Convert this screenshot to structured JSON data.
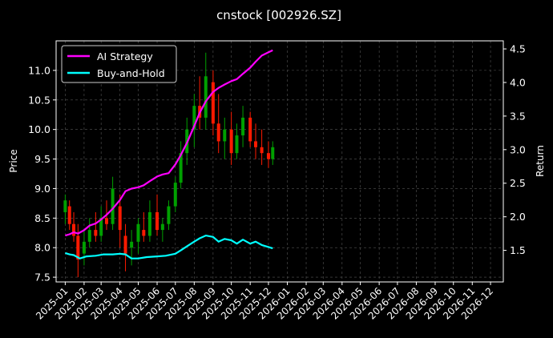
{
  "chart_data": {
    "type": "line",
    "title": "cnstock [002926.SZ]",
    "ylabel": "Price",
    "y2label": "Return",
    "ylim": [
      7.42,
      11.5
    ],
    "y2lim": [
      1.03,
      4.62
    ],
    "x_range": [
      "2024-12-17",
      "2026-12-22"
    ],
    "x_ticks": [
      "2025-01",
      "2025-02",
      "2025-03",
      "2025-04",
      "2025-05",
      "2025-06",
      "2025-07",
      "2025-08",
      "2025-09",
      "2025-10",
      "2025-11",
      "2025-12",
      "2026-01",
      "2026-02",
      "2026-03",
      "2026-04",
      "2026-05",
      "2026-06",
      "2026-07",
      "2026-08",
      "2026-09",
      "2026-10",
      "2026-11",
      "2026-12"
    ],
    "y_ticks": [
      "7.5",
      "8.0",
      "8.5",
      "9.0",
      "9.5",
      "10.0",
      "10.5",
      "11.0"
    ],
    "y2_ticks": [
      "1.5",
      "2.0",
      "2.5",
      "3.0",
      "3.5",
      "4.0",
      "4.5"
    ],
    "grid": true,
    "legend_position": "top-left",
    "colors": {
      "up": "#00a000",
      "down": "#ff1a00",
      "strategy": "#ff00ff",
      "buyhold": "#00ffff"
    },
    "series": [
      {
        "name": "AI Strategy",
        "axis": "right",
        "points": [
          [
            "2025-01-01",
            1.72
          ],
          [
            "2025-01-08",
            1.74
          ],
          [
            "2025-01-15",
            1.77
          ],
          [
            "2025-01-22",
            1.75
          ],
          [
            "2025-02-01",
            1.8
          ],
          [
            "2025-02-10",
            1.87
          ],
          [
            "2025-02-20",
            1.9
          ],
          [
            "2025-03-01",
            1.96
          ],
          [
            "2025-03-10",
            2.03
          ],
          [
            "2025-03-20",
            2.12
          ],
          [
            "2025-04-01",
            2.25
          ],
          [
            "2025-04-10",
            2.38
          ],
          [
            "2025-04-20",
            2.42
          ],
          [
            "2025-05-01",
            2.44
          ],
          [
            "2025-05-10",
            2.47
          ],
          [
            "2025-05-20",
            2.53
          ],
          [
            "2025-06-01",
            2.6
          ],
          [
            "2025-06-10",
            2.63
          ],
          [
            "2025-06-20",
            2.65
          ],
          [
            "2025-07-01",
            2.78
          ],
          [
            "2025-07-10",
            2.92
          ],
          [
            "2025-07-20",
            3.1
          ],
          [
            "2025-08-01",
            3.35
          ],
          [
            "2025-08-10",
            3.55
          ],
          [
            "2025-08-20",
            3.72
          ],
          [
            "2025-09-01",
            3.86
          ],
          [
            "2025-09-10",
            3.92
          ],
          [
            "2025-09-20",
            3.97
          ],
          [
            "2025-10-01",
            4.02
          ],
          [
            "2025-10-10",
            4.05
          ],
          [
            "2025-10-20",
            4.13
          ],
          [
            "2025-11-01",
            4.22
          ],
          [
            "2025-11-10",
            4.31
          ],
          [
            "2025-11-20",
            4.4
          ],
          [
            "2025-12-01",
            4.45
          ],
          [
            "2025-12-08",
            4.48
          ]
        ]
      },
      {
        "name": "Buy-and-Hold",
        "axis": "right",
        "points": [
          [
            "2025-01-01",
            1.46
          ],
          [
            "2025-01-08",
            1.44
          ],
          [
            "2025-01-15",
            1.43
          ],
          [
            "2025-01-25",
            1.38
          ],
          [
            "2025-02-05",
            1.41
          ],
          [
            "2025-02-20",
            1.42
          ],
          [
            "2025-03-05",
            1.44
          ],
          [
            "2025-03-20",
            1.44
          ],
          [
            "2025-04-01",
            1.45
          ],
          [
            "2025-04-10",
            1.44
          ],
          [
            "2025-04-20",
            1.38
          ],
          [
            "2025-05-01",
            1.38
          ],
          [
            "2025-05-15",
            1.4
          ],
          [
            "2025-06-01",
            1.41
          ],
          [
            "2025-06-15",
            1.42
          ],
          [
            "2025-07-01",
            1.45
          ],
          [
            "2025-07-10",
            1.5
          ],
          [
            "2025-07-20",
            1.56
          ],
          [
            "2025-08-01",
            1.63
          ],
          [
            "2025-08-10",
            1.68
          ],
          [
            "2025-08-20",
            1.72
          ],
          [
            "2025-09-01",
            1.7
          ],
          [
            "2025-09-10",
            1.63
          ],
          [
            "2025-09-20",
            1.67
          ],
          [
            "2025-10-01",
            1.65
          ],
          [
            "2025-10-10",
            1.6
          ],
          [
            "2025-10-20",
            1.66
          ],
          [
            "2025-11-01",
            1.6
          ],
          [
            "2025-11-10",
            1.63
          ],
          [
            "2025-11-20",
            1.58
          ],
          [
            "2025-12-01",
            1.55
          ],
          [
            "2025-12-08",
            1.53
          ]
        ]
      }
    ],
    "candles": [
      [
        "2025-01-01",
        8.6,
        8.9,
        8.4,
        8.8
      ],
      [
        "2025-01-08",
        8.7,
        8.8,
        8.3,
        8.4
      ],
      [
        "2025-01-15",
        8.4,
        8.6,
        8.1,
        8.2
      ],
      [
        "2025-01-22",
        8.2,
        8.4,
        7.5,
        7.8
      ],
      [
        "2025-02-01",
        7.9,
        8.3,
        7.7,
        8.1
      ],
      [
        "2025-02-10",
        8.1,
        8.5,
        8.0,
        8.3
      ],
      [
        "2025-02-20",
        8.3,
        8.6,
        8.1,
        8.2
      ],
      [
        "2025-03-01",
        8.2,
        8.7,
        8.1,
        8.5
      ],
      [
        "2025-03-10",
        8.5,
        8.8,
        8.3,
        8.4
      ],
      [
        "2025-03-20",
        8.4,
        9.2,
        8.3,
        9.0
      ],
      [
        "2025-04-01",
        8.7,
        8.9,
        8.0,
        8.3
      ],
      [
        "2025-04-10",
        8.2,
        8.4,
        7.6,
        7.9
      ],
      [
        "2025-04-20",
        8.0,
        8.3,
        7.7,
        8.1
      ],
      [
        "2025-05-01",
        8.1,
        8.5,
        7.9,
        8.4
      ],
      [
        "2025-05-10",
        8.3,
        8.6,
        8.1,
        8.2
      ],
      [
        "2025-05-20",
        8.2,
        8.8,
        8.1,
        8.6
      ],
      [
        "2025-06-01",
        8.6,
        8.9,
        8.2,
        8.3
      ],
      [
        "2025-06-10",
        8.3,
        8.5,
        8.1,
        8.4
      ],
      [
        "2025-06-20",
        8.4,
        8.8,
        8.3,
        8.7
      ],
      [
        "2025-07-01",
        8.7,
        9.2,
        8.6,
        9.1
      ],
      [
        "2025-07-10",
        9.1,
        9.8,
        9.0,
        9.6
      ],
      [
        "2025-07-20",
        9.6,
        10.2,
        9.4,
        10.0
      ],
      [
        "2025-08-01",
        10.0,
        10.6,
        9.7,
        10.4
      ],
      [
        "2025-08-10",
        10.4,
        10.9,
        10.0,
        10.2
      ],
      [
        "2025-08-20",
        10.2,
        11.3,
        10.0,
        10.9
      ],
      [
        "2025-09-01",
        10.8,
        11.0,
        9.9,
        10.1
      ],
      [
        "2025-09-10",
        10.1,
        10.6,
        9.6,
        9.8
      ],
      [
        "2025-09-20",
        9.8,
        10.2,
        9.5,
        10.0
      ],
      [
        "2025-10-01",
        10.0,
        10.3,
        9.4,
        9.6
      ],
      [
        "2025-10-10",
        9.6,
        10.1,
        9.5,
        9.9
      ],
      [
        "2025-10-20",
        9.9,
        10.4,
        9.7,
        10.2
      ],
      [
        "2025-11-01",
        10.2,
        10.3,
        9.7,
        9.8
      ],
      [
        "2025-11-10",
        9.8,
        10.1,
        9.5,
        9.7
      ],
      [
        "2025-11-20",
        9.7,
        10.0,
        9.4,
        9.6
      ],
      [
        "2025-12-01",
        9.6,
        9.8,
        9.35,
        9.5
      ],
      [
        "2025-12-08",
        9.5,
        9.8,
        9.4,
        9.7
      ]
    ]
  }
}
